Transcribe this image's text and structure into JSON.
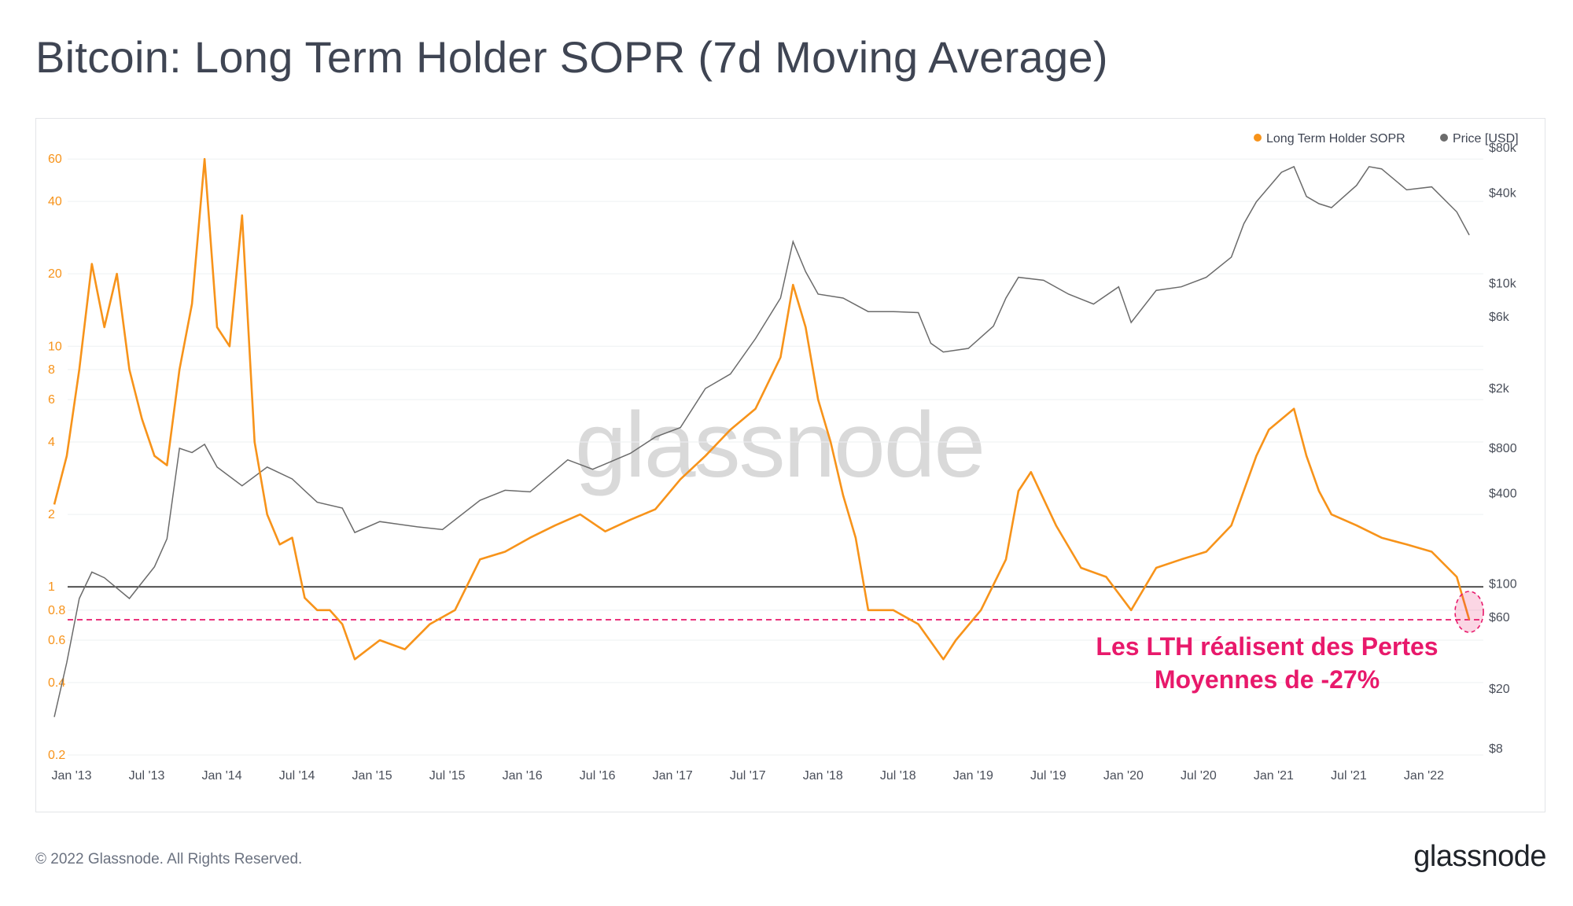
{
  "header": {
    "title": "Bitcoin: Long Term Holder SOPR (7d Moving Average)"
  },
  "footer": {
    "copyright": "© 2022 Glassnode. All Rights Reserved.",
    "logo_text": "glassnode"
  },
  "watermark": "glassnode",
  "colors": {
    "sopr": "#f7931a",
    "price": "#6b6b6b",
    "reference_line": "#444444",
    "loss_line": "#e8196b",
    "annotation": "#e8196b"
  },
  "annotation": {
    "line1": "Les LTH réalisent des Pertes",
    "line2": "Moyennes de -27%"
  },
  "chart_data": {
    "type": "line",
    "title": "Bitcoin: Long Term Holder SOPR (7d Moving Average)",
    "legend": {
      "placement": "top-right",
      "entries": [
        "Long Term Holder SOPR",
        "Price [USD]"
      ]
    },
    "x_ticks": [
      "Jan '13",
      "Jul '13",
      "Jan '14",
      "Jul '14",
      "Jan '15",
      "Jul '15",
      "Jan '16",
      "Jul '16",
      "Jan '17",
      "Jul '17",
      "Jan '18",
      "Jul '18",
      "Jan '19",
      "Jul '19",
      "Jan '20",
      "Jul '20",
      "Jan '21",
      "Jul '21",
      "Jan '22"
    ],
    "x_range": [
      "2013-01",
      "2022-06"
    ],
    "left_axis": {
      "scale": "log",
      "range": [
        0.2,
        80
      ],
      "ticks": [
        "60",
        "40",
        "20",
        "10",
        "8",
        "6",
        "4",
        "2",
        "1",
        "0.8",
        "0.6",
        "0.4",
        "0.2"
      ]
    },
    "right_axis": {
      "scale": "log",
      "range": [
        8,
        80000
      ],
      "ticks": [
        "$80k",
        "$40k",
        "$10k",
        "$6k",
        "$2k",
        "$800",
        "$400",
        "$100",
        "$60",
        "$20",
        "$8"
      ]
    },
    "reference_lines": [
      {
        "axis": "left",
        "value": 1.0,
        "style": "solid"
      },
      {
        "axis": "left",
        "value": 0.73,
        "style": "dashed"
      }
    ],
    "series": [
      {
        "name": "Long Term Holder SOPR",
        "axis": "left",
        "x": [
          "2013-01",
          "2013-02",
          "2013-03",
          "2013-04",
          "2013-05",
          "2013-06",
          "2013-07",
          "2013-08",
          "2013-09",
          "2013-10",
          "2013-11",
          "2013-12",
          "2014-01",
          "2014-02",
          "2014-03",
          "2014-04",
          "2014-05",
          "2014-06",
          "2014-07",
          "2014-08",
          "2014-09",
          "2014-10",
          "2014-11",
          "2014-12",
          "2015-01",
          "2015-03",
          "2015-05",
          "2015-07",
          "2015-09",
          "2015-11",
          "2016-01",
          "2016-03",
          "2016-05",
          "2016-07",
          "2016-09",
          "2016-11",
          "2017-01",
          "2017-03",
          "2017-05",
          "2017-07",
          "2017-09",
          "2017-11",
          "2017-12",
          "2018-01",
          "2018-02",
          "2018-03",
          "2018-04",
          "2018-05",
          "2018-06",
          "2018-08",
          "2018-10",
          "2018-12",
          "2019-01",
          "2019-03",
          "2019-05",
          "2019-06",
          "2019-07",
          "2019-09",
          "2019-11",
          "2020-01",
          "2020-03",
          "2020-05",
          "2020-07",
          "2020-09",
          "2020-11",
          "2021-01",
          "2021-02",
          "2021-04",
          "2021-05",
          "2021-06",
          "2021-07",
          "2021-09",
          "2021-11",
          "2022-01",
          "2022-03",
          "2022-05",
          "2022-06"
        ],
        "y": [
          2.2,
          3.5,
          8,
          22,
          12,
          20,
          8,
          5,
          3.5,
          3.2,
          8,
          15,
          60,
          12,
          10,
          35,
          4,
          2,
          1.5,
          1.6,
          0.9,
          0.8,
          0.8,
          0.7,
          0.5,
          0.6,
          0.55,
          0.7,
          0.8,
          1.3,
          1.4,
          1.6,
          1.8,
          2.0,
          1.7,
          1.9,
          2.1,
          2.8,
          3.5,
          4.5,
          5.5,
          9,
          18,
          12,
          6,
          4,
          2.4,
          1.6,
          0.8,
          0.8,
          0.7,
          0.5,
          0.6,
          0.8,
          1.3,
          2.5,
          3.0,
          1.8,
          1.2,
          1.1,
          0.8,
          1.2,
          1.3,
          1.4,
          1.8,
          3.5,
          4.5,
          5.5,
          3.5,
          2.5,
          2.0,
          1.8,
          1.6,
          1.5,
          1.4,
          1.1,
          0.73
        ]
      },
      {
        "name": "Price [USD]",
        "axis": "right",
        "x": [
          "2013-01",
          "2013-02",
          "2013-03",
          "2013-04",
          "2013-05",
          "2013-07",
          "2013-09",
          "2013-10",
          "2013-11",
          "2013-12",
          "2014-01",
          "2014-02",
          "2014-04",
          "2014-06",
          "2014-08",
          "2014-10",
          "2014-12",
          "2015-01",
          "2015-03",
          "2015-06",
          "2015-08",
          "2015-11",
          "2016-01",
          "2016-03",
          "2016-06",
          "2016-08",
          "2016-11",
          "2017-01",
          "2017-03",
          "2017-05",
          "2017-07",
          "2017-09",
          "2017-11",
          "2017-12",
          "2018-01",
          "2018-02",
          "2018-04",
          "2018-06",
          "2018-08",
          "2018-10",
          "2018-11",
          "2018-12",
          "2019-02",
          "2019-04",
          "2019-05",
          "2019-06",
          "2019-08",
          "2019-10",
          "2019-12",
          "2020-02",
          "2020-03",
          "2020-05",
          "2020-07",
          "2020-09",
          "2020-11",
          "2020-12",
          "2021-01",
          "2021-03",
          "2021-04",
          "2021-05",
          "2021-06",
          "2021-07",
          "2021-09",
          "2021-10",
          "2021-11",
          "2022-01",
          "2022-03",
          "2022-05",
          "2022-06"
        ],
        "y": [
          13,
          30,
          80,
          120,
          110,
          80,
          130,
          200,
          800,
          750,
          850,
          600,
          450,
          600,
          500,
          350,
          320,
          220,
          260,
          240,
          230,
          360,
          420,
          410,
          670,
          580,
          740,
          950,
          1100,
          2000,
          2500,
          4300,
          8000,
          19000,
          12000,
          8500,
          8000,
          6500,
          6500,
          6400,
          4000,
          3500,
          3700,
          5200,
          8000,
          11000,
          10500,
          8500,
          7300,
          9500,
          5500,
          9000,
          9500,
          11000,
          15000,
          25000,
          35000,
          55000,
          60000,
          38000,
          34000,
          32000,
          45000,
          60000,
          58000,
          42000,
          44000,
          30000,
          21000
        ]
      }
    ]
  }
}
